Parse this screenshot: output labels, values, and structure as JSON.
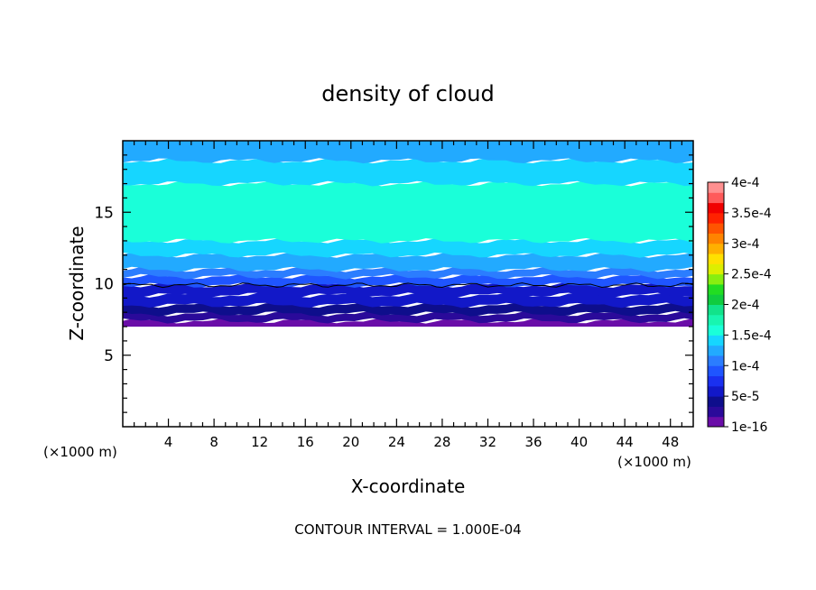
{
  "chart_data": {
    "type": "heatmap",
    "title": "density of cloud",
    "xlabel": "X-coordinate",
    "ylabel": "Z-coordinate",
    "x_unit_left": "(×1000 m)",
    "x_unit_right": "(×1000 m)",
    "footer": "CONTOUR INTERVAL = 1.000E-04",
    "xlim": [
      0,
      50
    ],
    "ylim": [
      0,
      20
    ],
    "x_ticks": [
      4,
      8,
      12,
      16,
      20,
      24,
      28,
      32,
      36,
      40,
      44,
      48
    ],
    "x_tick_labels": [
      "4",
      "8",
      "12",
      "16",
      "20",
      "24",
      "28",
      "32",
      "36",
      "40",
      "44",
      "48"
    ],
    "y_ticks": [
      5,
      10,
      15
    ],
    "y_tick_labels": [
      "5",
      "10",
      "15"
    ],
    "cloud_base_z": 7.0,
    "contour_line_z": 9.9,
    "bands": [
      {
        "z0": 7.0,
        "z1": 7.4,
        "value": 1e-16
      },
      {
        "z0": 7.4,
        "z1": 7.9,
        "value": 2.5e-05
      },
      {
        "z0": 7.9,
        "z1": 8.5,
        "value": 3.75e-05
      },
      {
        "z0": 8.5,
        "z1": 9.2,
        "value": 5e-05
      },
      {
        "z0": 9.2,
        "z1": 9.9,
        "value": 6.25e-05
      },
      {
        "z0": 9.9,
        "z1": 10.5,
        "value": 8.75e-05
      },
      {
        "z0": 10.5,
        "z1": 11.0,
        "value": 0.0001
      },
      {
        "z0": 11.0,
        "z1": 12.0,
        "value": 0.000125
      },
      {
        "z0": 12.0,
        "z1": 13.0,
        "value": 0.00014
      },
      {
        "z0": 13.0,
        "z1": 17.0,
        "value": 0.000155
      },
      {
        "z0": 17.0,
        "z1": 18.6,
        "value": 0.00014
      },
      {
        "z0": 18.6,
        "z1": 20.0,
        "value": 0.000125
      }
    ],
    "colorbar": {
      "ticks": [
        "1e-16",
        "5e-5",
        "1e-4",
        "1.5e-4",
        "2e-4",
        "2.5e-4",
        "3e-4",
        "3.5e-4",
        "4e-4"
      ],
      "colors": [
        "#6a0da8",
        "#2a0a9a",
        "#0e0e8c",
        "#1218c8",
        "#1a30f0",
        "#1f55ff",
        "#2b7dff",
        "#22aaff",
        "#16d6ff",
        "#1affd9",
        "#18f5b0",
        "#12e38a",
        "#10cc3f",
        "#22dd22",
        "#88ee10",
        "#ddee00",
        "#ffe000",
        "#ffb000",
        "#ff8400",
        "#ff5400",
        "#ff2200",
        "#f10000",
        "#ff5a5a",
        "#ff9090"
      ]
    }
  }
}
